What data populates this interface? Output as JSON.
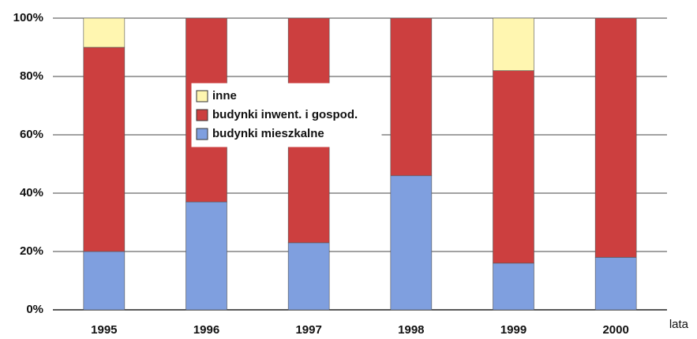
{
  "chart_data": {
    "type": "stacked_bar",
    "categories": [
      "1995",
      "1996",
      "1997",
      "1998",
      "1999",
      "2000"
    ],
    "series": [
      {
        "name": "budynki mieszkalne",
        "color": "#7f9fdf",
        "values": [
          20,
          37,
          23,
          46,
          16,
          18
        ]
      },
      {
        "name": "budynki inwent. i gospod.",
        "color": "#cc3f3f",
        "values": [
          70,
          63,
          77,
          54,
          66,
          82
        ]
      },
      {
        "name": "inne",
        "color": "#fff6b0",
        "values": [
          10,
          0,
          0,
          0,
          18,
          0
        ]
      }
    ],
    "x_label": "lata",
    "ylim": [
      0,
      100
    ],
    "yticks": [
      {
        "value": 0,
        "label": "0%"
      },
      {
        "value": 20,
        "label": "20%"
      },
      {
        "value": 40,
        "label": "40%"
      },
      {
        "value": 60,
        "label": "60%"
      },
      {
        "value": 80,
        "label": "80%"
      },
      {
        "value": 100,
        "label": "100%"
      }
    ],
    "grid": true,
    "legend": "inside-top"
  }
}
